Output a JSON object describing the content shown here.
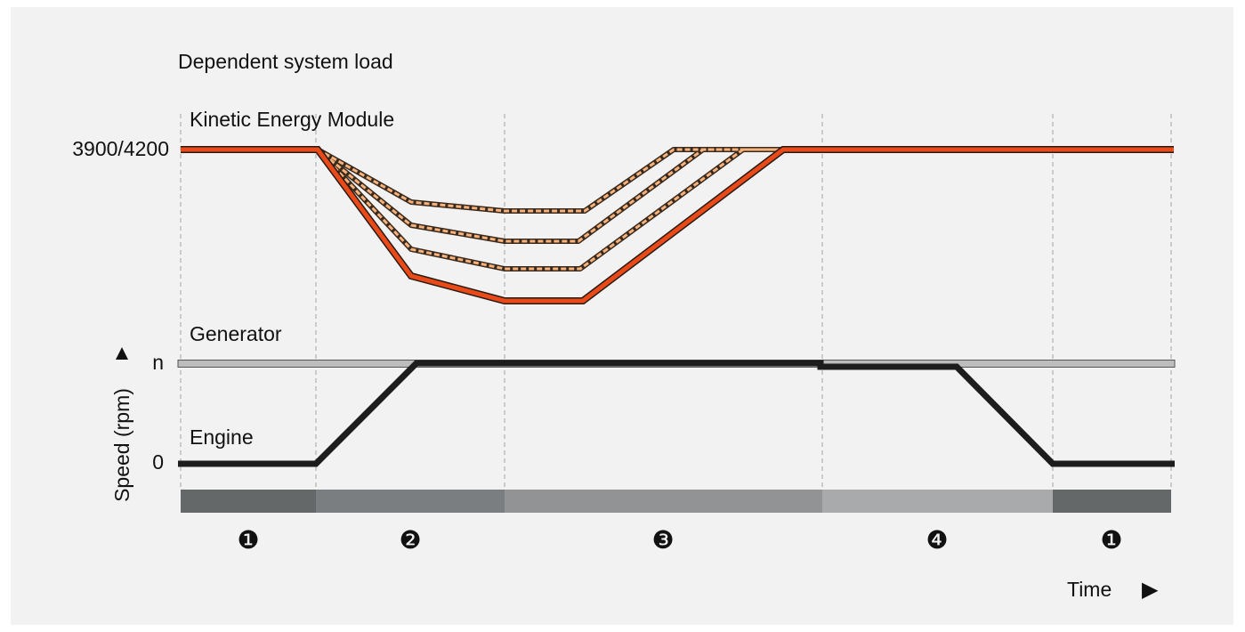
{
  "diagram": {
    "title": "Dependent system load",
    "labels": {
      "kinetic": "Kinetic Energy Module",
      "generator": "Generator",
      "engine": "Engine",
      "y_axis": "Speed (rpm)",
      "x_axis": "Time"
    },
    "ticks": {
      "kem_speed": "3900/4200",
      "n": "n",
      "zero": "0"
    },
    "arrows": {
      "y": "▲",
      "x": "▶"
    },
    "phases": [
      {
        "label": "❶",
        "color": "#656869"
      },
      {
        "label": "❷",
        "color": "#7b7e81"
      },
      {
        "label": "❸",
        "color": "#929394"
      },
      {
        "label": "❹",
        "color": "#a8aaab"
      },
      {
        "label": "❶",
        "color": "#656869"
      }
    ],
    "colors": {
      "kem_line": "#e84a1a",
      "kem_dashed": "#f6b27a",
      "engine_line": "#1d1d1d",
      "generator_line": "#bdbdbd",
      "gridline": "#b5b5b5",
      "background": "#f2f2f2"
    }
  }
}
